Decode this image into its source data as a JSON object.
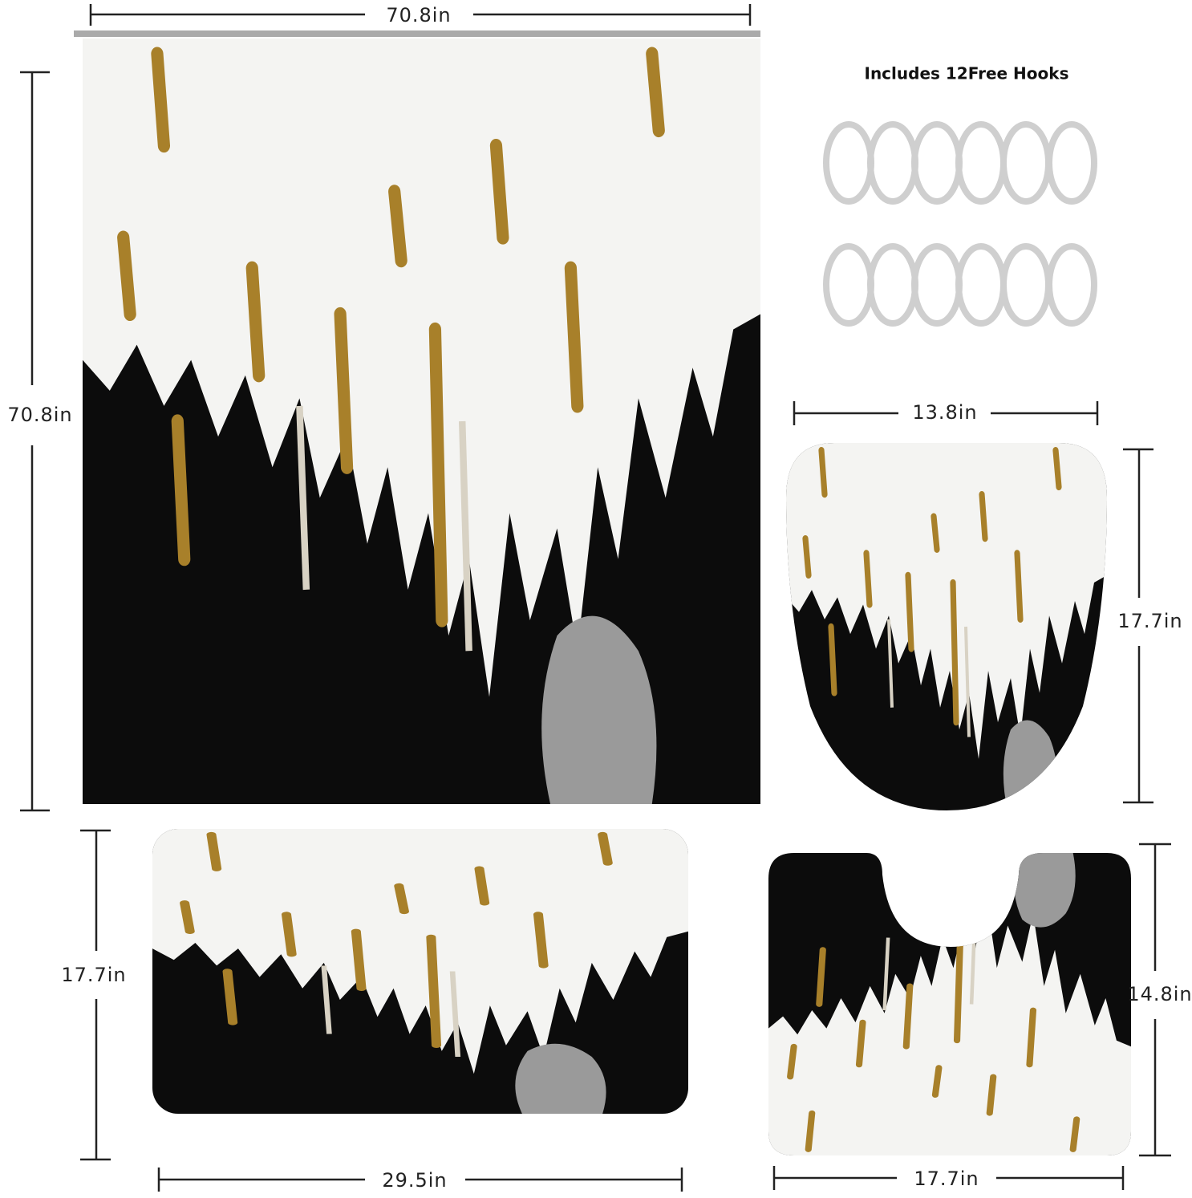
{
  "title": "Includes 12Free Hooks",
  "dimensions": {
    "curtain_width": "70.8in",
    "curtain_height": "70.8in",
    "lid_width": "13.8in",
    "lid_height": "17.7in",
    "bath_mat_height": "17.7in",
    "bath_mat_width": "29.5in",
    "contour_mat_height": "14.8in",
    "contour_mat_width": "17.7in"
  }
}
